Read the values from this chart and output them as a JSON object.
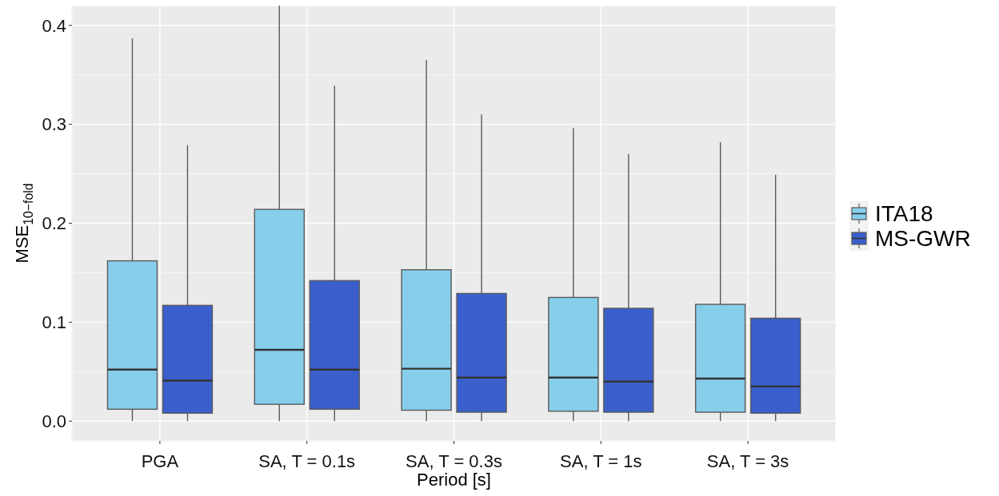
{
  "chart_data": {
    "type": "box",
    "xlabel": "Period [s]",
    "ylabel": "MSE$_{10−fold}$",
    "categories": [
      "PGA",
      "SA, T = 0.1s",
      "SA, T = 0.3s",
      "SA, T = 1s",
      "SA, T = 3s"
    ],
    "series": [
      {
        "name": "ITA18",
        "color": "#87ceeb",
        "boxes": [
          {
            "low": 0,
            "q1": 0.012,
            "median": 0.052,
            "q3": 0.162,
            "high": 0.387
          },
          {
            "low": 0,
            "q1": 0.017,
            "median": 0.072,
            "q3": 0.214,
            "high": 0.42
          },
          {
            "low": 0,
            "q1": 0.011,
            "median": 0.053,
            "q3": 0.153,
            "high": 0.365
          },
          {
            "low": 0,
            "q1": 0.01,
            "median": 0.044,
            "q3": 0.125,
            "high": 0.296
          },
          {
            "low": 0,
            "q1": 0.009,
            "median": 0.043,
            "q3": 0.118,
            "high": 0.282
          }
        ]
      },
      {
        "name": "MS-GWR",
        "color": "#3a5fcd",
        "boxes": [
          {
            "low": 0,
            "q1": 0.008,
            "median": 0.041,
            "q3": 0.117,
            "high": 0.279
          },
          {
            "low": 0,
            "q1": 0.012,
            "median": 0.052,
            "q3": 0.142,
            "high": 0.339
          },
          {
            "low": 0,
            "q1": 0.009,
            "median": 0.044,
            "q3": 0.129,
            "high": 0.31
          },
          {
            "low": 0,
            "q1": 0.009,
            "median": 0.04,
            "q3": 0.114,
            "high": 0.27
          },
          {
            "low": 0,
            "q1": 0.008,
            "median": 0.035,
            "q3": 0.104,
            "high": 0.249
          }
        ]
      }
    ],
    "ylim": [
      -0.02,
      0.42
    ],
    "yticks": [
      {
        "value": 0,
        "label": "0.0"
      },
      0.1,
      0.2,
      0.3,
      0.4
    ],
    "grid": true,
    "legend": "right"
  }
}
